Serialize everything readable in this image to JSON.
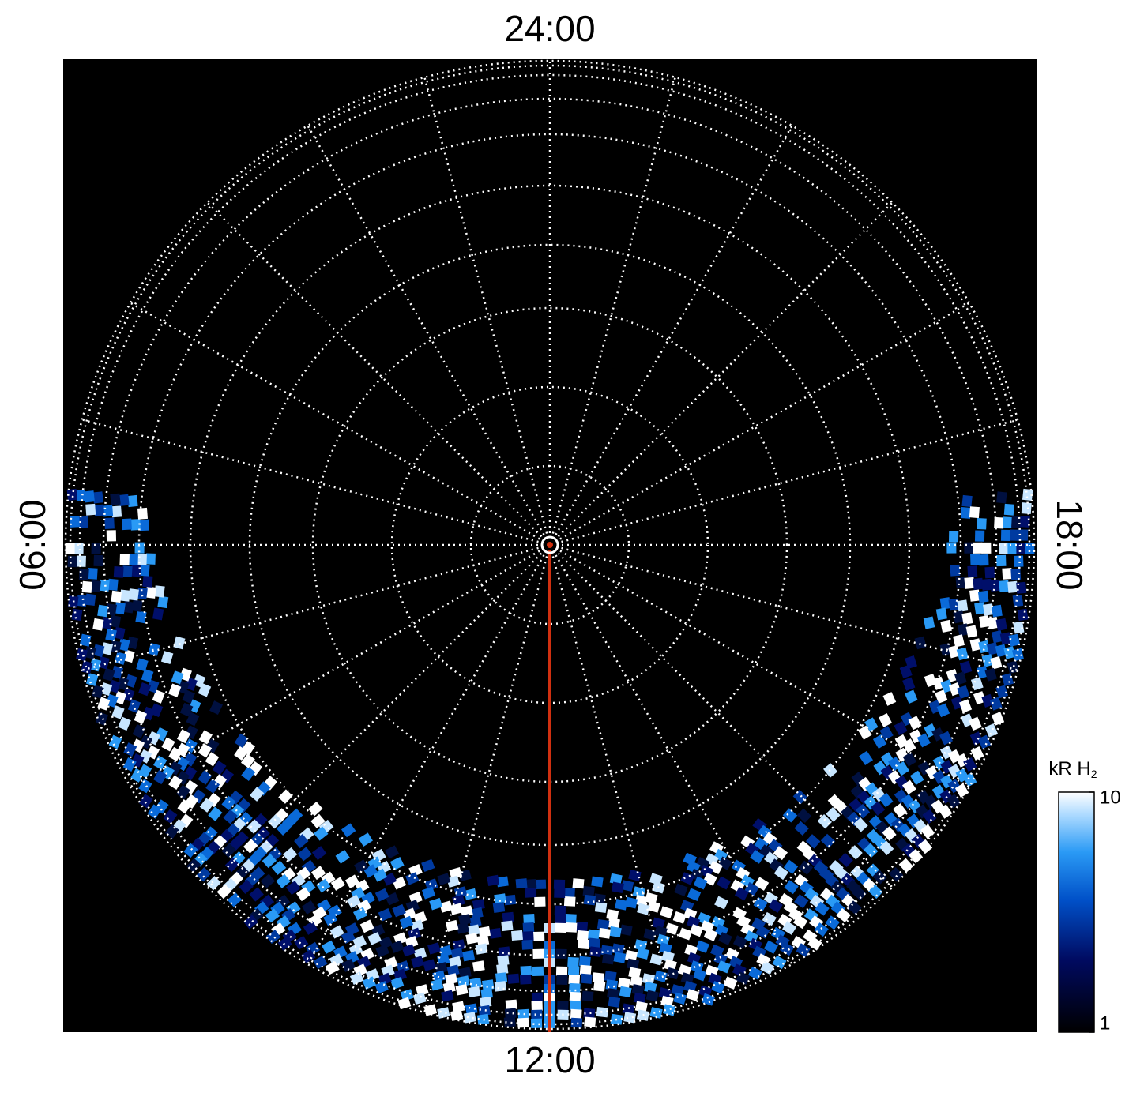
{
  "labels": {
    "top": "24:00",
    "bottom": "12:00",
    "left": "06:00",
    "right": "18:00"
  },
  "colorbar": {
    "title": "kR H",
    "title_subscript": "2",
    "scale": "log",
    "lim": [
      1,
      10
    ],
    "ticks": [
      1,
      10
    ]
  }
}
